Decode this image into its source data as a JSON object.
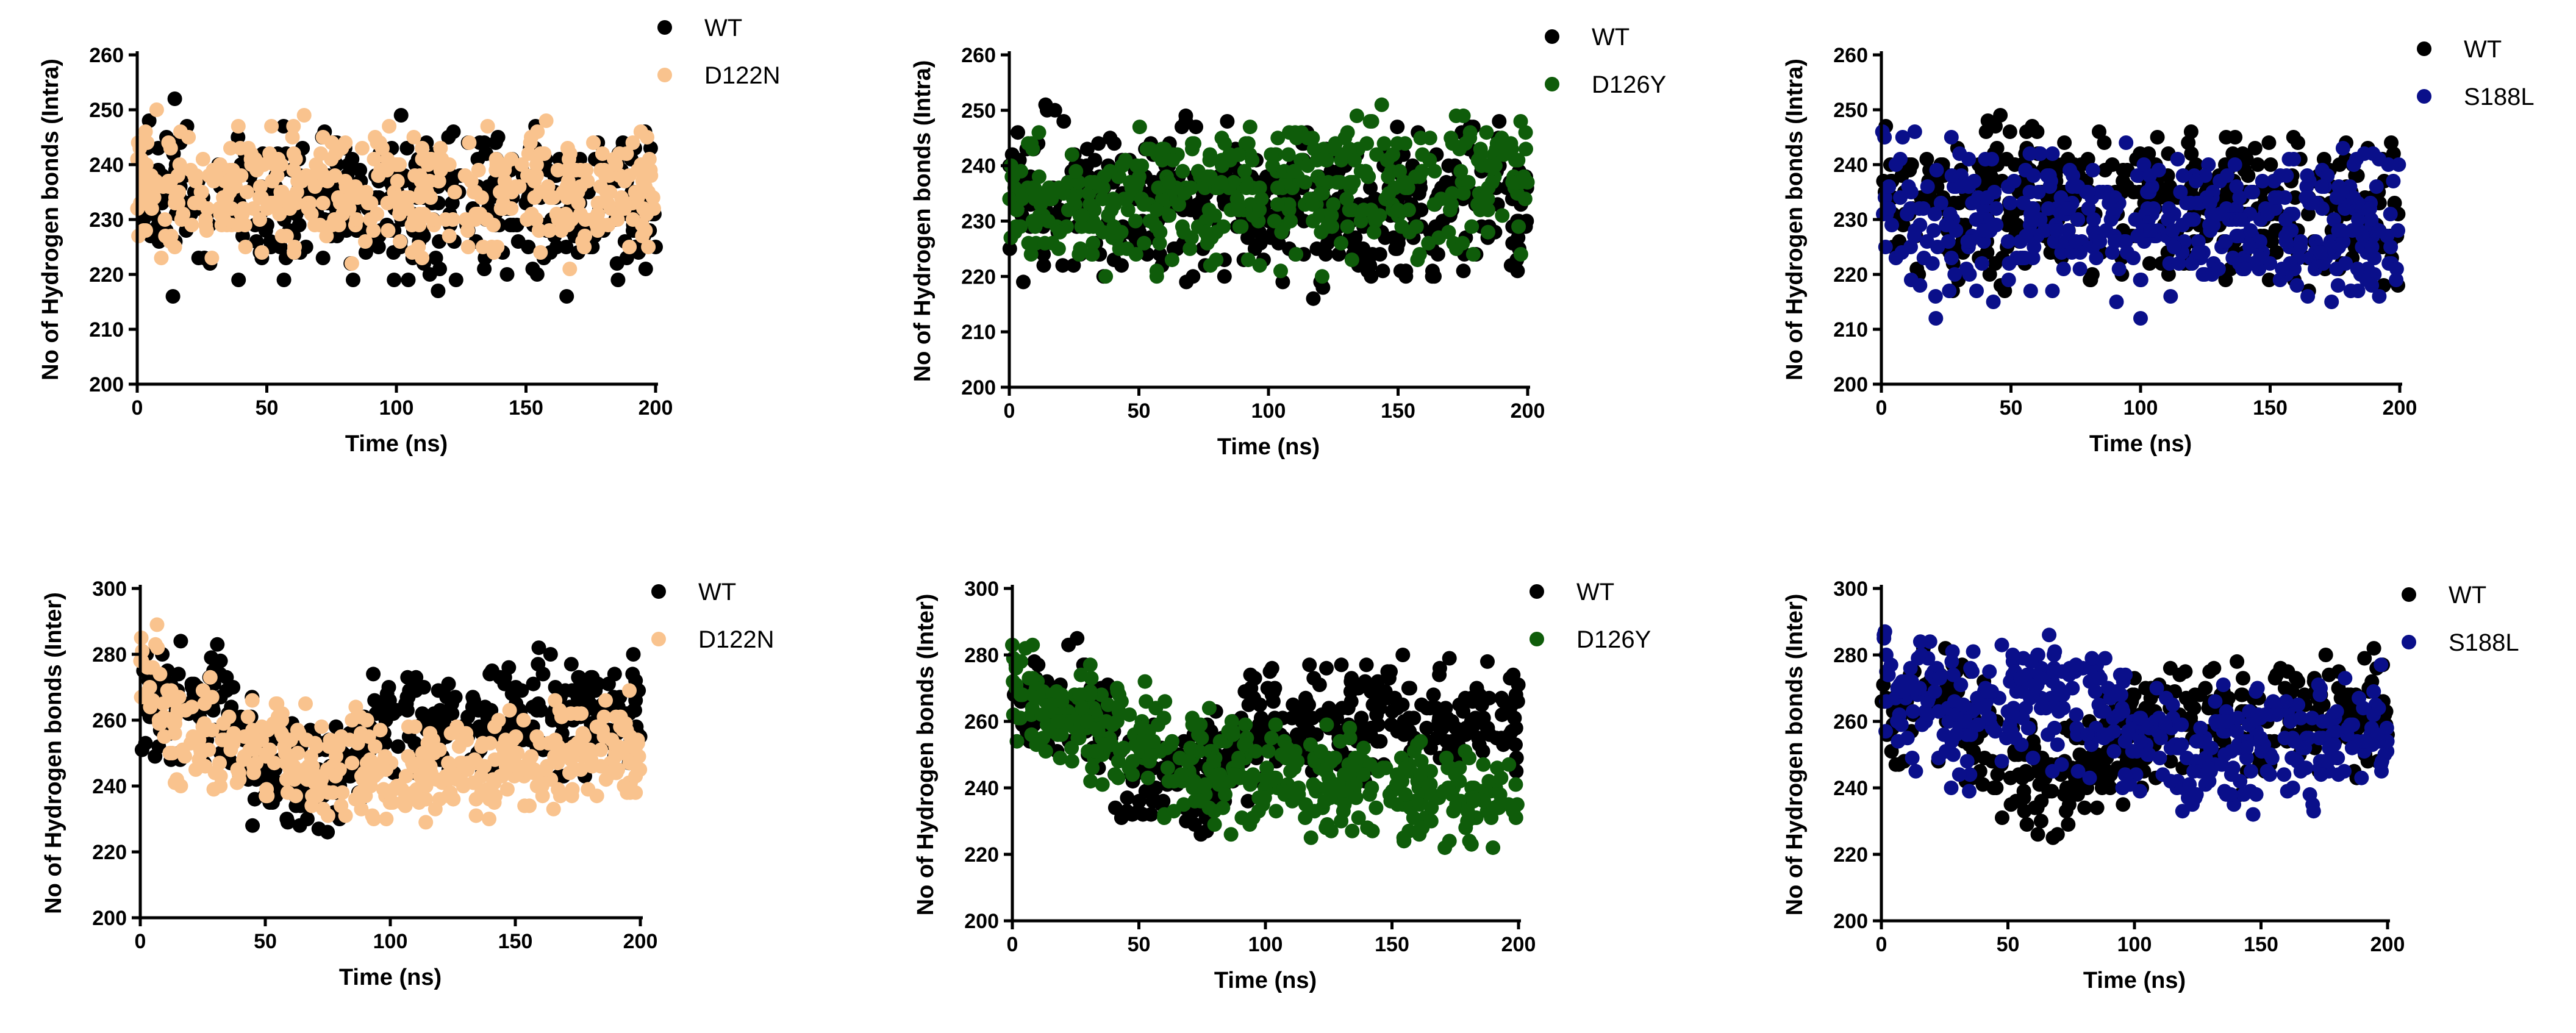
{
  "chart_data": [
    {
      "type": "scatter",
      "id": "p1",
      "xlabel": "Time (ns)",
      "ylabel": "No of Hydrogen bonds (Intra)",
      "xlim": [
        0,
        200
      ],
      "ylim": [
        200,
        260
      ],
      "xticks": [
        "0",
        "50",
        "100",
        "150",
        "200"
      ],
      "yticks": [
        "200",
        "210",
        "220",
        "230",
        "240",
        "250",
        "260"
      ],
      "series": [
        {
          "name": "WT",
          "color": "#000000",
          "gen": {
            "seed": 11,
            "n": 420,
            "base": [
              [
                0,
                234
              ],
              [
                200,
                232
              ]
            ],
            "spread": 6.5,
            "min": 211,
            "max": 255
          }
        },
        {
          "name": "D122N",
          "color": "#F9C38E",
          "gen": {
            "seed": 12,
            "n": 420,
            "base": [
              [
                0,
                235
              ],
              [
                200,
                235
              ]
            ],
            "spread": 5.5,
            "min": 214,
            "max": 254
          }
        }
      ]
    },
    {
      "type": "scatter",
      "id": "p2",
      "xlabel": "Time (ns)",
      "ylabel": "No of Hydrogen bonds (Intra)",
      "xlim": [
        0,
        200
      ],
      "ylim": [
        200,
        260
      ],
      "xticks": [
        "0",
        "50",
        "100",
        "150",
        "200"
      ],
      "yticks": [
        "200",
        "210",
        "220",
        "230",
        "240",
        "250",
        "260"
      ],
      "series": [
        {
          "name": "WT",
          "color": "#000000",
          "gen": {
            "seed": 21,
            "n": 420,
            "base": [
              [
                0,
                234
              ],
              [
                200,
                232
              ]
            ],
            "spread": 6.5,
            "min": 211,
            "max": 255
          }
        },
        {
          "name": "D126Y",
          "color": "#0F5C0A",
          "gen": {
            "seed": 22,
            "n": 420,
            "base": [
              [
                0,
                233
              ],
              [
                200,
                238
              ]
            ],
            "spread": 6,
            "min": 215,
            "max": 258
          }
        }
      ]
    },
    {
      "type": "scatter",
      "id": "p3",
      "xlabel": "Time (ns)",
      "ylabel": "No of Hydrogen bonds (Intra)",
      "xlim": [
        0,
        200
      ],
      "ylim": [
        200,
        260
      ],
      "xticks": [
        "0",
        "50",
        "100",
        "150",
        "200"
      ],
      "yticks": [
        "200",
        "210",
        "220",
        "230",
        "240",
        "250",
        "260"
      ],
      "series": [
        {
          "name": "WT",
          "color": "#000000",
          "gen": {
            "seed": 31,
            "n": 420,
            "base": [
              [
                0,
                234
              ],
              [
                200,
                232
              ]
            ],
            "spread": 6.5,
            "min": 211,
            "max": 255
          }
        },
        {
          "name": "S188L",
          "color": "#0A0F8A",
          "gen": {
            "seed": 32,
            "n": 420,
            "base": [
              [
                0,
                230
              ],
              [
                200,
                229
              ]
            ],
            "spread": 6.5,
            "min": 201,
            "max": 250
          }
        }
      ]
    },
    {
      "type": "scatter",
      "id": "p4",
      "xlabel": "Time (ns)",
      "ylabel": "No of Hydrogen bonds (Inter)",
      "xlim": [
        0,
        200
      ],
      "ylim": [
        200,
        300
      ],
      "xticks": [
        "0",
        "50",
        "100",
        "150",
        "200"
      ],
      "yticks": [
        "200",
        "220",
        "240",
        "260",
        "280",
        "300"
      ],
      "series": [
        {
          "name": "WT",
          "color": "#000000",
          "gen": {
            "seed": 41,
            "n": 420,
            "base": [
              [
                0,
                265
              ],
              [
                30,
                265
              ],
              [
                45,
                245
              ],
              [
                80,
                242
              ],
              [
                100,
                260
              ],
              [
                200,
                262
              ]
            ],
            "spread": 8,
            "min": 225,
            "max": 288
          }
        },
        {
          "name": "D122N",
          "color": "#F9C38E",
          "gen": {
            "seed": 42,
            "n": 420,
            "base": [
              [
                0,
                275
              ],
              [
                15,
                255
              ],
              [
                40,
                250
              ],
              [
                100,
                243
              ],
              [
                200,
                250
              ]
            ],
            "spread": 8,
            "min": 213,
            "max": 289
          }
        }
      ]
    },
    {
      "type": "scatter",
      "id": "p5",
      "xlabel": "Time (ns)",
      "ylabel": "No of Hydrogen bonds (Inter)",
      "xlim": [
        0,
        200
      ],
      "ylim": [
        200,
        300
      ],
      "xticks": [
        "0",
        "50",
        "100",
        "150",
        "200"
      ],
      "yticks": [
        "200",
        "220",
        "240",
        "260",
        "280",
        "300"
      ],
      "series": [
        {
          "name": "WT",
          "color": "#000000",
          "gen": {
            "seed": 51,
            "n": 420,
            "base": [
              [
                0,
                265
              ],
              [
                30,
                265
              ],
              [
                45,
                245
              ],
              [
                80,
                242
              ],
              [
                100,
                260
              ],
              [
                200,
                262
              ]
            ],
            "spread": 8,
            "min": 225,
            "max": 288
          }
        },
        {
          "name": "D126Y",
          "color": "#0F5C0A",
          "gen": {
            "seed": 52,
            "n": 420,
            "base": [
              [
                0,
                270
              ],
              [
                50,
                252
              ],
              [
                100,
                243
              ],
              [
                200,
                237
              ]
            ],
            "spread": 8,
            "min": 214,
            "max": 285
          }
        }
      ]
    },
    {
      "type": "scatter",
      "id": "p6",
      "xlabel": "Time (ns)",
      "ylabel": "No of Hydrogen bonds (Inter)",
      "xlim": [
        0,
        200
      ],
      "ylim": [
        200,
        300
      ],
      "xticks": [
        "0",
        "50",
        "100",
        "150",
        "200"
      ],
      "yticks": [
        "200",
        "220",
        "240",
        "260",
        "280",
        "300"
      ],
      "series": [
        {
          "name": "WT",
          "color": "#000000",
          "gen": {
            "seed": 61,
            "n": 420,
            "base": [
              [
                0,
                265
              ],
              [
                30,
                265
              ],
              [
                45,
                245
              ],
              [
                80,
                242
              ],
              [
                100,
                260
              ],
              [
                200,
                262
              ]
            ],
            "spread": 8,
            "min": 225,
            "max": 288
          }
        },
        {
          "name": "S188L",
          "color": "#0A0F8A",
          "gen": {
            "seed": 62,
            "n": 420,
            "base": [
              [
                0,
                275
              ],
              [
                30,
                262
              ],
              [
                60,
                268
              ],
              [
                90,
                262
              ],
              [
                110,
                252
              ],
              [
                200,
                256
              ]
            ],
            "spread": 9,
            "min": 227,
            "max": 293
          }
        }
      ]
    }
  ]
}
